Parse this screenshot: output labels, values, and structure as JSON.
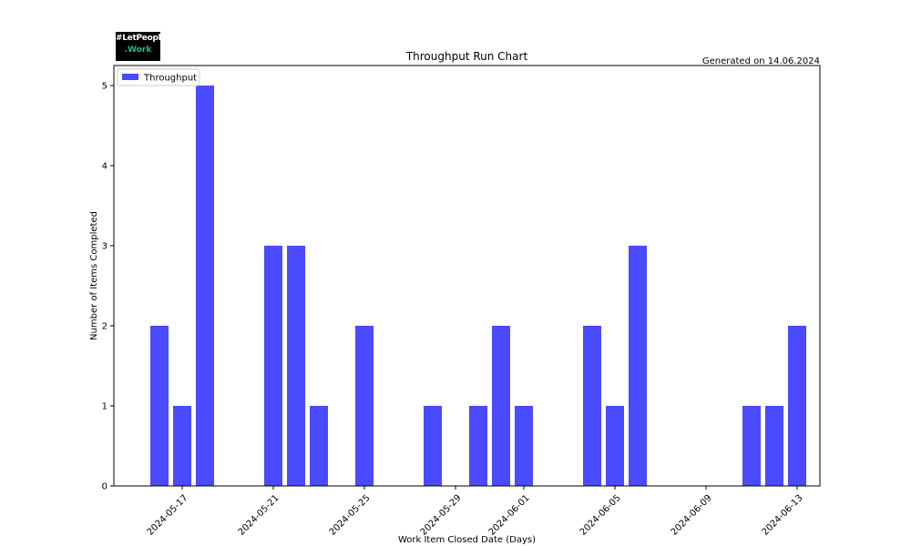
{
  "logo": {
    "line1": "#LetPeople",
    "line2": ".Work"
  },
  "generated_text": "Generated on 14.06.2024",
  "chart_data": {
    "type": "bar",
    "title": "Throughput Run Chart",
    "xlabel": "Work Item Closed Date (Days)",
    "ylabel": "Number of Items Completed",
    "x_range": [
      "2024-05-14",
      "2024-06-14"
    ],
    "ylim": [
      0,
      5.25
    ],
    "yticks": [
      0,
      1,
      2,
      3,
      4,
      5
    ],
    "xticks": [
      "2024-05-17",
      "2024-05-21",
      "2024-05-25",
      "2024-05-29",
      "2024-06-01",
      "2024-06-05",
      "2024-06-09",
      "2024-06-13"
    ],
    "grid": false,
    "legend_position": "top-left",
    "color": "#4a4aff",
    "series": [
      {
        "name": "Throughput",
        "points": [
          {
            "date": "2024-05-16",
            "value": 2
          },
          {
            "date": "2024-05-17",
            "value": 1
          },
          {
            "date": "2024-05-18",
            "value": 5
          },
          {
            "date": "2024-05-21",
            "value": 3
          },
          {
            "date": "2024-05-22",
            "value": 3
          },
          {
            "date": "2024-05-23",
            "value": 1
          },
          {
            "date": "2024-05-25",
            "value": 2
          },
          {
            "date": "2024-05-28",
            "value": 1
          },
          {
            "date": "2024-05-30",
            "value": 1
          },
          {
            "date": "2024-05-31",
            "value": 2
          },
          {
            "date": "2024-06-01",
            "value": 1
          },
          {
            "date": "2024-06-04",
            "value": 2
          },
          {
            "date": "2024-06-05",
            "value": 1
          },
          {
            "date": "2024-06-06",
            "value": 3
          },
          {
            "date": "2024-06-11",
            "value": 1
          },
          {
            "date": "2024-06-12",
            "value": 1
          },
          {
            "date": "2024-06-13",
            "value": 2
          }
        ]
      }
    ]
  }
}
